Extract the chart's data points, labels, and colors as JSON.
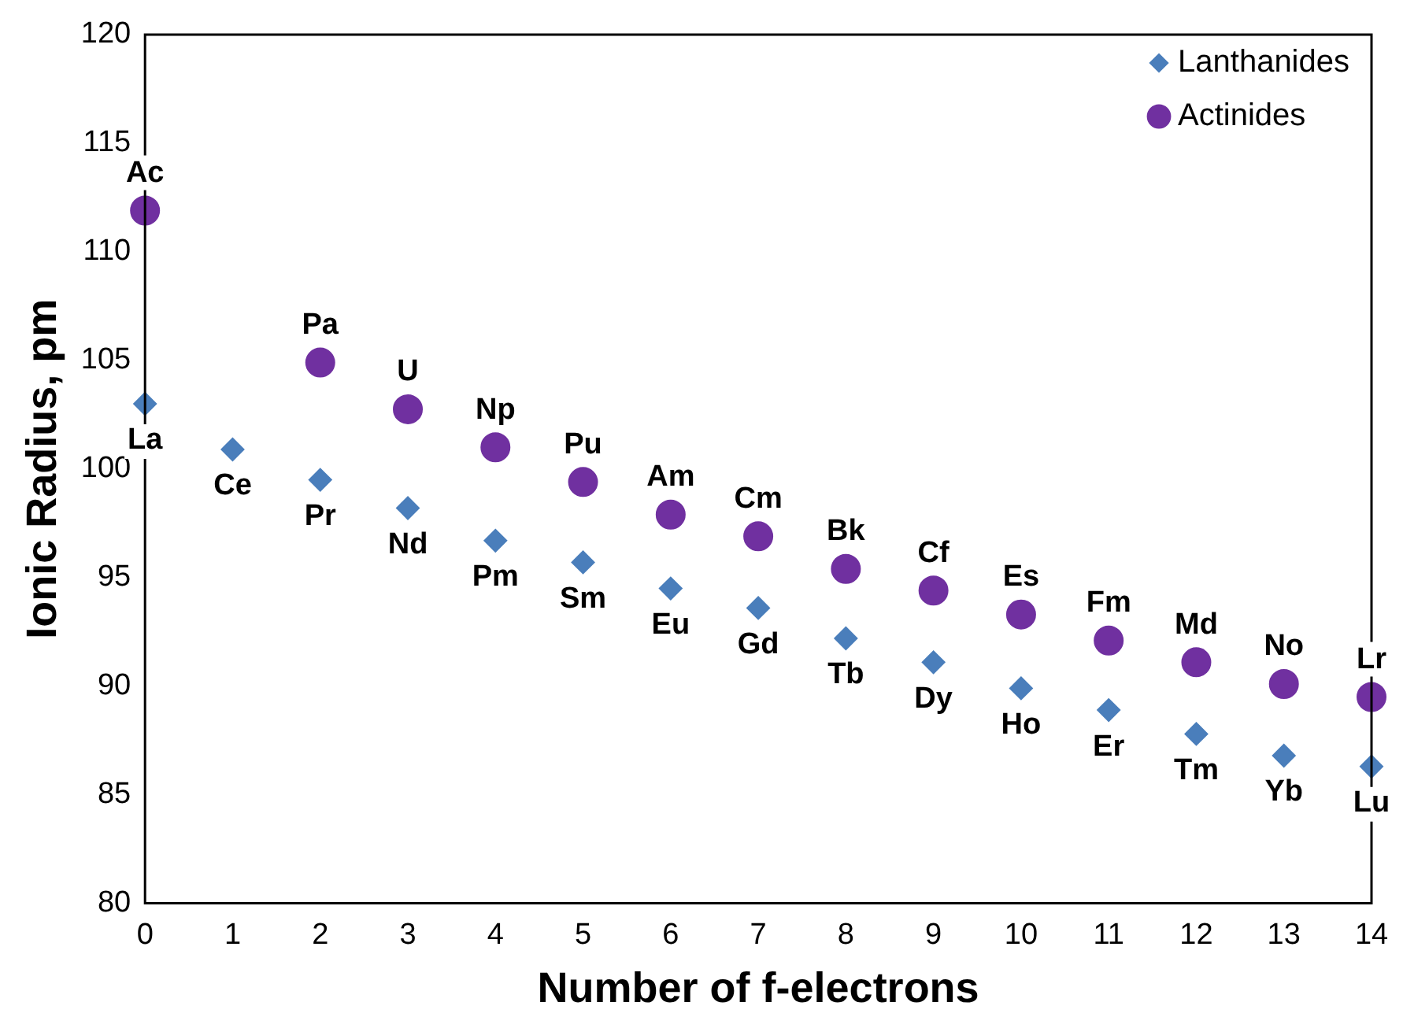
{
  "chart_data": {
    "type": "scatter",
    "xlabel": "Number of f-electrons",
    "ylabel": "Ionic Radius, pm",
    "x": [
      0,
      1,
      2,
      3,
      4,
      5,
      6,
      7,
      8,
      9,
      10,
      11,
      12,
      13,
      14
    ],
    "xlim": [
      0,
      14
    ],
    "xticks": [
      0,
      1,
      2,
      3,
      4,
      5,
      6,
      7,
      8,
      9,
      10,
      11,
      12,
      13,
      14
    ],
    "ylim": [
      80,
      120
    ],
    "yticks": [
      80,
      85,
      90,
      95,
      100,
      105,
      110,
      115,
      120
    ],
    "grid": false,
    "legend": "top right",
    "series": [
      {
        "name": "Lanthanides",
        "color": "#4a7ebb",
        "marker": "diamond",
        "values": [
          103.0,
          100.9,
          99.5,
          98.2,
          96.7,
          95.7,
          94.5,
          93.6,
          92.2,
          91.1,
          89.9,
          88.9,
          87.8,
          86.8,
          86.3
        ],
        "value_labels": [
          "La",
          "Ce",
          "Pr",
          "Nd",
          "Pm",
          "Sm",
          "Eu",
          "Gd",
          "Tb",
          "Dy",
          "Ho",
          "Er",
          "Tm",
          "Yb",
          "Lu"
        ]
      },
      {
        "name": "Actinides",
        "color": "#7030a0",
        "marker": "circle",
        "values": [
          111.9,
          null,
          104.9,
          102.75,
          101.0,
          99.4,
          97.9,
          96.9,
          95.4,
          94.4,
          93.3,
          92.1,
          91.1,
          90.1,
          89.5
        ],
        "value_labels": [
          "Ac",
          null,
          "Pa",
          "U",
          "Np",
          "Pu",
          "Am",
          "Cm",
          "Bk",
          "Cf",
          "Es",
          "Fm",
          "Md",
          "No",
          "Lr"
        ]
      }
    ]
  }
}
